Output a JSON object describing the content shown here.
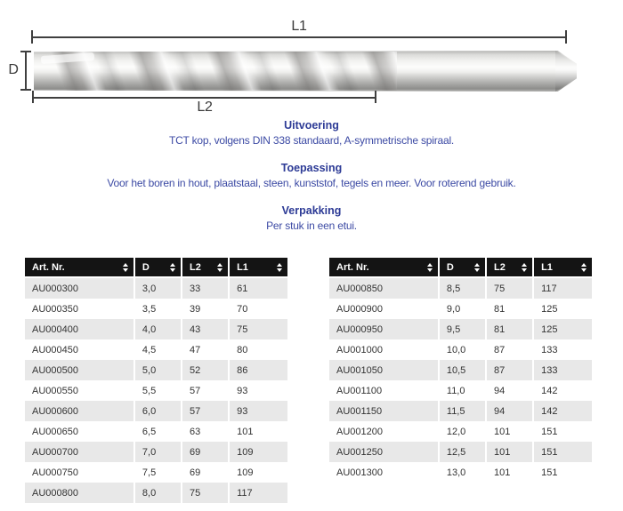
{
  "diagram": {
    "label_l1": "L1",
    "label_l2": "L2",
    "label_d": "D"
  },
  "sections": [
    {
      "heading": "Uitvoering",
      "body": "TCT kop, volgens DIN 338 standaard, A-symmetrische spiraal."
    },
    {
      "heading": "Toepassing",
      "body": "Voor het boren in hout, plaatstaal, steen, kunststof, tegels en meer. Voor roterend gebruik."
    },
    {
      "heading": "Verpakking",
      "body": "Per stuk in een etui."
    }
  ],
  "tables": {
    "columns": [
      "Art. Nr.",
      "D",
      "L2",
      "L1"
    ],
    "left": {
      "rows": [
        [
          "AU000300",
          "3,0",
          "33",
          "61"
        ],
        [
          "AU000350",
          "3,5",
          "39",
          "70"
        ],
        [
          "AU000400",
          "4,0",
          "43",
          "75"
        ],
        [
          "AU000450",
          "4,5",
          "47",
          "80"
        ],
        [
          "AU000500",
          "5,0",
          "52",
          "86"
        ],
        [
          "AU000550",
          "5,5",
          "57",
          "93"
        ],
        [
          "AU000600",
          "6,0",
          "57",
          "93"
        ],
        [
          "AU000650",
          "6,5",
          "63",
          "101"
        ],
        [
          "AU000700",
          "7,0",
          "69",
          "109"
        ],
        [
          "AU000750",
          "7,5",
          "69",
          "109"
        ],
        [
          "AU000800",
          "8,0",
          "75",
          "117"
        ]
      ]
    },
    "right": {
      "rows": [
        [
          "AU000850",
          "8,5",
          "75",
          "117"
        ],
        [
          "AU000900",
          "9,0",
          "81",
          "125"
        ],
        [
          "AU000950",
          "9,5",
          "81",
          "125"
        ],
        [
          "AU001000",
          "10,0",
          "87",
          "133"
        ],
        [
          "AU001050",
          "10,5",
          "87",
          "133"
        ],
        [
          "AU001100",
          "11,0",
          "94",
          "142"
        ],
        [
          "AU001150",
          "11,5",
          "94",
          "142"
        ],
        [
          "AU001200",
          "12,0",
          "101",
          "151"
        ],
        [
          "AU001250",
          "12,5",
          "101",
          "151"
        ],
        [
          "AU001300",
          "13,0",
          "101",
          "151"
        ]
      ]
    }
  },
  "icons": {
    "sort": "up-down-triangles"
  },
  "colors": {
    "heading_blue": "#2d3b96",
    "body_blue": "#3c4aa4",
    "table_header_bg": "#141414",
    "table_row_alt": "#e8e8e8",
    "dim_line": "#3f3f3f"
  }
}
